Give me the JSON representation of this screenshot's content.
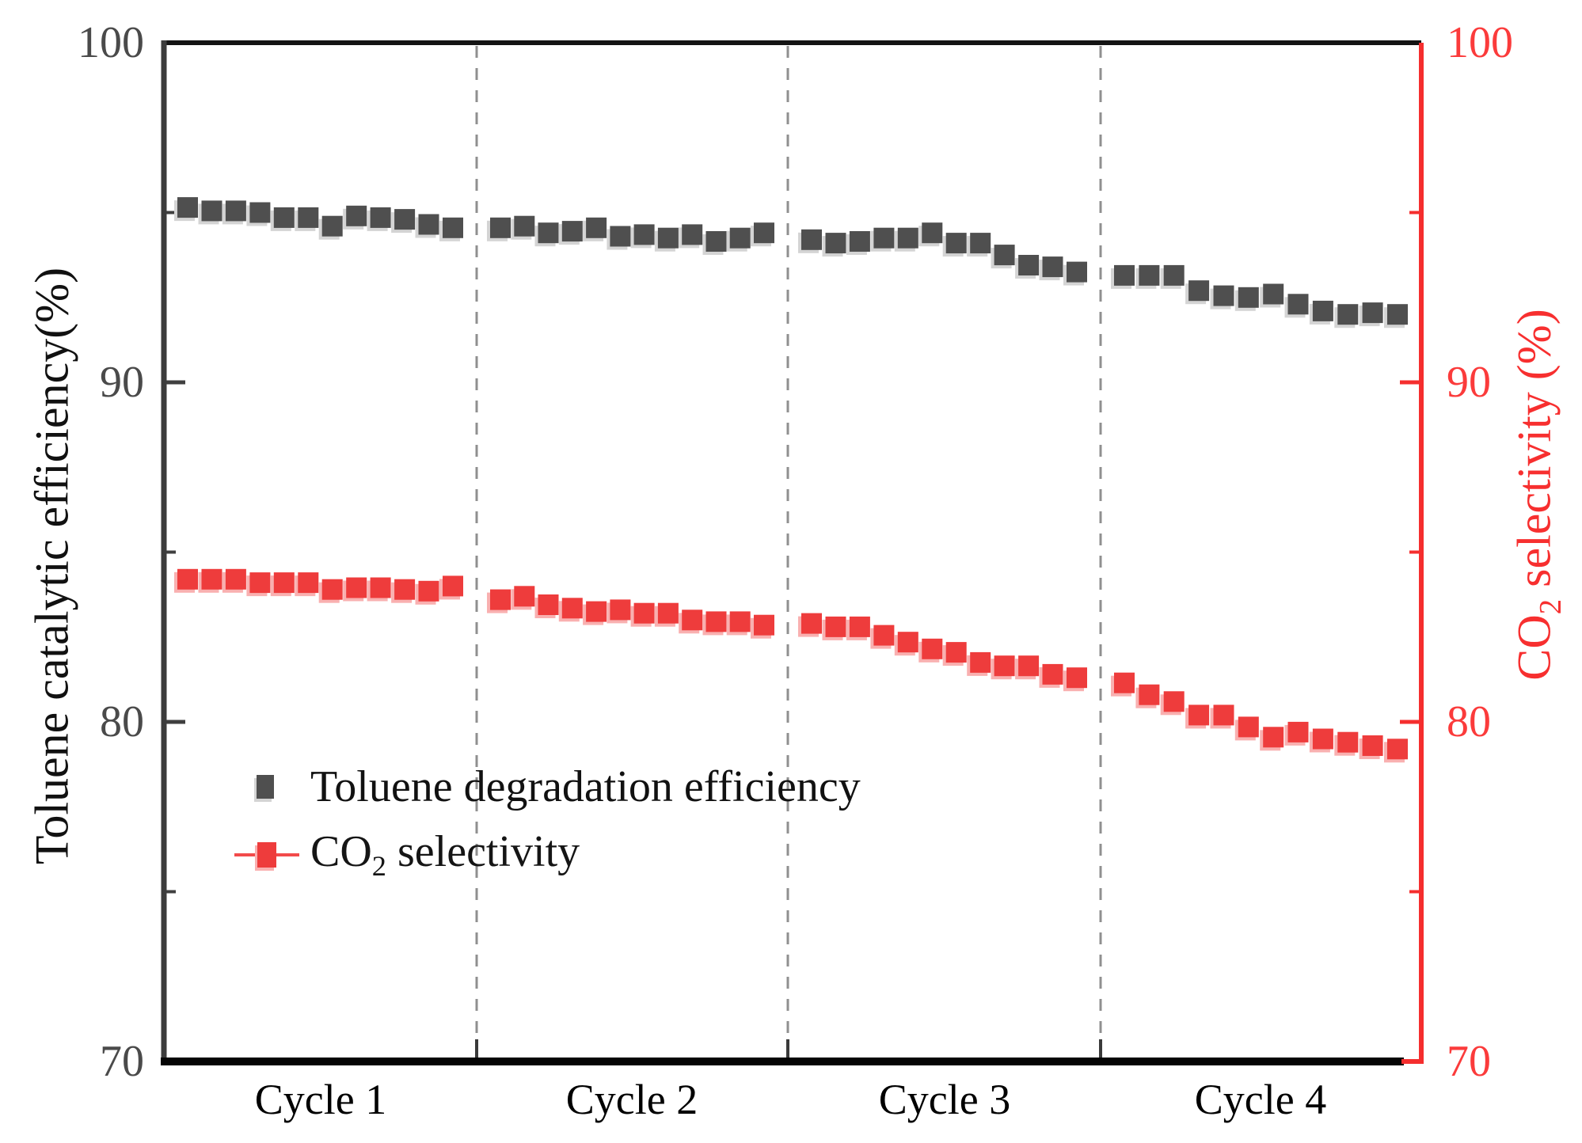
{
  "chart_data": {
    "type": "scatter",
    "title": "",
    "categories": [
      "Cycle 1",
      "Cycle 2",
      "Cycle 3",
      "Cycle 4"
    ],
    "points_per_cycle": 12,
    "x_description": "48 consecutive measurements, 12 per cycle; cycles separated by vertical dashed lines",
    "grid": false,
    "separator_style": "dashed",
    "legend_position": "inside lower-left",
    "left_axis": {
      "label": "Toluene catalytic efficiency(%)",
      "range": [
        70,
        100
      ],
      "tick_labels": [
        "100",
        "90",
        "80",
        "70"
      ],
      "major_ticks": [
        100,
        90,
        80,
        70
      ],
      "minor_ticks": [
        95,
        85,
        75
      ],
      "color": "#3f3f3f"
    },
    "right_axis": {
      "label": "CO2 selectivity (%)",
      "label_prefix": "CO",
      "label_sub": "2",
      "label_rest": " selectivity (%)",
      "range": [
        70,
        100
      ],
      "tick_labels": [
        "100",
        "90",
        "80",
        "70"
      ],
      "major_ticks": [
        100,
        90,
        80,
        70
      ],
      "minor_ticks": [
        95,
        85,
        75
      ],
      "color": "#f52e2e"
    },
    "series": [
      {
        "name": "Toluene degradation efficiency",
        "axis": "left",
        "marker": "square",
        "color": "#4f4f4f",
        "shadow": "#d4d4d4",
        "values": [
          95.15,
          95.05,
          95.05,
          95.0,
          94.85,
          94.85,
          94.6,
          94.9,
          94.85,
          94.8,
          94.65,
          94.55,
          94.55,
          94.6,
          94.4,
          94.45,
          94.55,
          94.3,
          94.35,
          94.25,
          94.35,
          94.15,
          94.25,
          94.4,
          94.2,
          94.1,
          94.15,
          94.25,
          94.25,
          94.4,
          94.1,
          94.1,
          93.75,
          93.45,
          93.4,
          93.25,
          93.15,
          93.15,
          93.15,
          92.7,
          92.55,
          92.5,
          92.6,
          92.3,
          92.1,
          92.0,
          92.05,
          92.0
        ]
      },
      {
        "name": "CO2 selectivity",
        "axis": "right",
        "marker": "square",
        "color": "#ee3c3c",
        "shadow": "#f9b0b0",
        "values": [
          84.2,
          84.2,
          84.2,
          84.1,
          84.1,
          84.1,
          83.9,
          83.95,
          83.95,
          83.9,
          83.85,
          84.0,
          83.6,
          83.7,
          83.45,
          83.35,
          83.25,
          83.3,
          83.2,
          83.2,
          83.0,
          82.95,
          82.95,
          82.85,
          82.9,
          82.8,
          82.8,
          82.55,
          82.35,
          82.15,
          82.05,
          81.75,
          81.65,
          81.65,
          81.4,
          81.3,
          81.15,
          80.8,
          80.6,
          80.2,
          80.2,
          79.85,
          79.55,
          79.7,
          79.5,
          79.4,
          79.3,
          79.2
        ]
      }
    ]
  },
  "legend": {
    "toluene_label": "Toluene degradation efficiency",
    "co2_prefix": "CO",
    "co2_sub": "2",
    "co2_rest": " selectivity"
  },
  "colors": {
    "toluene_marker": "#4f4f4f",
    "co2_marker": "#ee3c3c",
    "right_axis_red": "#f52e2e",
    "separator_gray": "#8f8f8f"
  }
}
